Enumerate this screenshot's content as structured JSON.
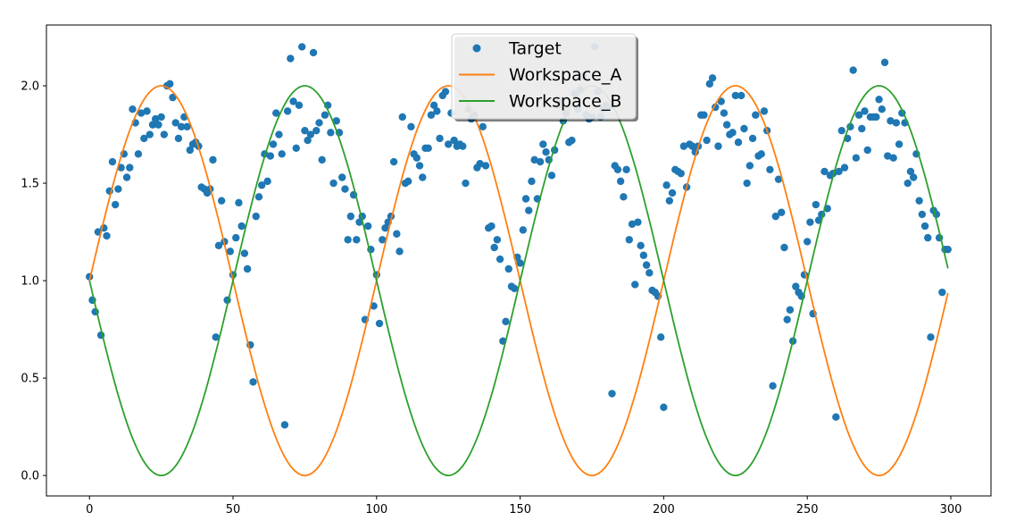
{
  "chart_data": {
    "type": "line",
    "xlim": [
      -15,
      314
    ],
    "ylim": [
      -0.105,
      2.312
    ],
    "xticks": [
      0,
      50,
      100,
      150,
      200,
      250,
      300
    ],
    "yticks": [
      {
        "value": 0,
        "label": "0.0"
      },
      0.5,
      {
        "value": 1,
        "label": "1.0"
      },
      1.5,
      {
        "value": 2,
        "label": "2.0"
      }
    ],
    "legend": "upper center",
    "series": [
      {
        "name": "Target",
        "style": "markers",
        "color": "#1f77b4",
        "x": [
          0,
          1,
          2,
          3,
          4,
          5,
          6,
          7,
          8,
          9,
          10,
          11,
          12,
          13,
          14,
          15,
          16,
          17,
          18,
          19,
          20,
          21,
          22,
          23,
          24,
          25,
          26,
          27,
          28,
          29,
          30,
          31,
          32,
          33,
          34,
          35,
          36,
          37,
          38,
          39,
          40,
          41,
          42,
          43,
          44,
          45,
          46,
          47,
          48,
          49,
          50,
          51,
          52,
          53,
          54,
          55,
          56,
          57,
          58,
          59,
          60,
          61,
          62,
          63,
          64,
          65,
          66,
          67,
          68,
          69,
          70,
          71,
          72,
          73,
          74,
          75,
          76,
          77,
          78,
          79,
          80,
          81,
          82,
          83,
          84,
          85,
          86,
          87,
          88,
          89,
          90,
          91,
          92,
          93,
          94,
          95,
          96,
          97,
          98,
          99,
          100,
          101,
          102,
          103,
          104,
          105,
          106,
          107,
          108,
          109,
          110,
          111,
          112,
          113,
          114,
          115,
          116,
          117,
          118,
          119,
          120,
          121,
          122,
          123,
          124,
          125,
          126,
          127,
          128,
          129,
          130,
          131,
          132,
          133,
          134,
          135,
          136,
          137,
          138,
          139,
          140,
          141,
          142,
          143,
          144,
          145,
          146,
          147,
          148,
          149,
          150,
          151,
          152,
          153,
          154,
          155,
          156,
          157,
          158,
          159,
          160,
          161,
          162,
          163,
          164,
          165,
          166,
          167,
          168,
          169,
          170,
          171,
          172,
          173,
          174,
          175,
          176,
          177,
          178,
          179,
          180,
          181,
          182,
          183,
          184,
          185,
          186,
          187,
          188,
          189,
          190,
          191,
          192,
          193,
          194,
          195,
          196,
          197,
          198,
          199,
          200,
          201,
          202,
          203,
          204,
          205,
          206,
          207,
          208,
          209,
          210,
          211,
          212,
          213,
          214,
          215,
          216,
          217,
          218,
          219,
          220,
          221,
          222,
          223,
          224,
          225,
          226,
          227,
          228,
          229,
          230,
          231,
          232,
          233,
          234,
          235,
          236,
          237,
          238,
          239,
          240,
          241,
          242,
          243,
          244,
          245,
          246,
          247,
          248,
          249,
          250,
          251,
          252,
          253,
          254,
          255,
          256,
          257,
          258,
          259,
          260,
          261,
          262,
          263,
          264,
          265,
          266,
          267,
          268,
          269,
          270,
          271,
          272,
          273,
          274,
          275,
          276,
          277,
          278,
          279,
          280,
          281,
          282,
          283,
          284,
          285,
          286,
          287,
          288,
          289,
          290,
          291,
          292,
          293,
          294,
          295,
          296,
          297,
          298,
          299
        ],
        "values": [
          1.02,
          0.9,
          0.84,
          1.25,
          0.72,
          1.27,
          1.23,
          1.46,
          1.61,
          1.39,
          1.47,
          1.58,
          1.65,
          1.53,
          1.58,
          1.88,
          1.81,
          1.65,
          1.86,
          1.73,
          1.87,
          1.75,
          1.8,
          1.83,
          1.8,
          1.84,
          1.75,
          2.0,
          2.01,
          1.94,
          1.81,
          1.73,
          1.79,
          1.84,
          1.79,
          1.67,
          1.7,
          1.71,
          1.69,
          1.48,
          1.47,
          1.45,
          1.47,
          1.62,
          0.71,
          1.18,
          1.41,
          1.2,
          0.9,
          1.15,
          1.03,
          1.22,
          1.4,
          1.28,
          1.14,
          1.06,
          0.67,
          0.48,
          1.33,
          1.43,
          1.49,
          1.65,
          1.51,
          1.64,
          1.7,
          1.86,
          1.75,
          1.65,
          0.26,
          1.87,
          2.14,
          1.92,
          1.68,
          1.9,
          2.2,
          1.77,
          1.72,
          1.75,
          2.17,
          1.77,
          1.81,
          1.62,
          1.85,
          1.9,
          1.76,
          1.5,
          1.82,
          1.76,
          1.53,
          1.47,
          1.21,
          1.33,
          1.44,
          1.21,
          1.3,
          1.33,
          0.8,
          1.28,
          1.16,
          0.87,
          1.03,
          0.78,
          1.21,
          1.27,
          1.3,
          1.33,
          1.61,
          1.24,
          1.15,
          1.84,
          1.5,
          1.51,
          1.79,
          1.65,
          1.63,
          1.59,
          1.53,
          1.68,
          1.68,
          1.85,
          1.9,
          1.87,
          1.73,
          1.95,
          1.97,
          1.7,
          1.86,
          1.72,
          1.69,
          1.7,
          1.69,
          1.5,
          1.88,
          1.83,
          1.85,
          1.58,
          1.6,
          1.79,
          1.59,
          1.27,
          1.28,
          1.17,
          1.21,
          1.11,
          0.69,
          0.79,
          1.06,
          0.97,
          0.96,
          1.12,
          1.09,
          1.26,
          1.42,
          1.36,
          1.51,
          1.62,
          1.42,
          1.61,
          1.7,
          1.66,
          1.62,
          1.54,
          1.67,
          1.9,
          1.92,
          1.82,
          1.86,
          1.71,
          1.72,
          1.96,
          1.88,
          1.98,
          2.05,
          1.85,
          1.83,
          1.84,
          2.2,
          1.97,
          1.84,
          1.88,
          1.9,
          1.89,
          0.42,
          1.59,
          1.57,
          1.51,
          1.43,
          1.57,
          1.21,
          1.29,
          0.98,
          1.3,
          1.18,
          1.13,
          1.08,
          1.04,
          0.95,
          0.94,
          0.92,
          0.71,
          0.35,
          1.49,
          1.41,
          1.45,
          1.57,
          1.56,
          1.55,
          1.69,
          1.48,
          1.7,
          1.69,
          1.66,
          1.69,
          1.85,
          1.85,
          1.72,
          2.01,
          2.04,
          1.89,
          1.69,
          1.92,
          1.86,
          1.8,
          1.75,
          1.76,
          1.95,
          1.71,
          1.95,
          1.78,
          1.5,
          1.59,
          1.73,
          1.85,
          1.64,
          1.65,
          1.87,
          1.77,
          1.57,
          0.46,
          1.33,
          1.52,
          1.35,
          1.17,
          0.8,
          0.85,
          0.69,
          0.97,
          0.94,
          0.92,
          1.03,
          1.2,
          1.3,
          0.83,
          1.39,
          1.31,
          1.34,
          1.56,
          1.37,
          1.54,
          1.55,
          0.3,
          1.56,
          1.77,
          1.58,
          1.73,
          1.79,
          2.08,
          1.63,
          1.85,
          1.78,
          1.87,
          1.67,
          1.84,
          1.84,
          1.84,
          1.93,
          1.88,
          2.12,
          1.64,
          1.82,
          1.63,
          1.81,
          1.7,
          1.86,
          1.81,
          1.5,
          1.56,
          1.53,
          1.65,
          1.41,
          1.34,
          1.28,
          1.22,
          0.71,
          1.36,
          1.34,
          1.22,
          0.94,
          1.16,
          1.16
        ]
      },
      {
        "name": "Workspace_A",
        "style": "line",
        "color": "#ff7f0e",
        "x": [
          0,
          5,
          10,
          15,
          20,
          25,
          30,
          35,
          40,
          45,
          50,
          55,
          60,
          65,
          70,
          75,
          80,
          85,
          90,
          95,
          100,
          105,
          110,
          115,
          120,
          125,
          130,
          135,
          140,
          145,
          150,
          155,
          160,
          165,
          170,
          175,
          180,
          185,
          190,
          195,
          200,
          205,
          210,
          215,
          220,
          225,
          230,
          235,
          240,
          245,
          250,
          255,
          260,
          265,
          270,
          275,
          280,
          285,
          290,
          295,
          299
        ],
        "values": [
          1,
          1.309,
          1.588,
          1.809,
          1.951,
          2,
          1.951,
          1.809,
          1.588,
          1.309,
          1,
          0.691,
          0.412,
          0.191,
          0.049,
          0,
          0.049,
          0.191,
          0.412,
          0.691,
          1,
          1.309,
          1.588,
          1.809,
          1.951,
          2,
          1.951,
          1.809,
          1.588,
          1.309,
          1,
          0.691,
          0.412,
          0.191,
          0.049,
          0,
          0.049,
          0.191,
          0.412,
          0.691,
          1,
          1.309,
          1.588,
          1.809,
          1.951,
          2,
          1.951,
          1.809,
          1.588,
          1.309,
          1,
          0.691,
          0.412,
          0.191,
          0.049,
          0,
          0.049,
          0.191,
          0.412,
          0.691,
          0.937
        ]
      },
      {
        "name": "Workspace_B",
        "style": "line",
        "color": "#2ca02c",
        "x": [
          0,
          5,
          10,
          15,
          20,
          25,
          30,
          35,
          40,
          45,
          50,
          55,
          60,
          65,
          70,
          75,
          80,
          85,
          90,
          95,
          100,
          105,
          110,
          115,
          120,
          125,
          130,
          135,
          140,
          145,
          150,
          155,
          160,
          165,
          170,
          175,
          180,
          185,
          190,
          195,
          200,
          205,
          210,
          215,
          220,
          225,
          230,
          235,
          240,
          245,
          250,
          255,
          260,
          265,
          270,
          275,
          280,
          285,
          290,
          295,
          299
        ],
        "values": [
          1,
          0.691,
          0.412,
          0.191,
          0.049,
          0,
          0.049,
          0.191,
          0.412,
          0.691,
          1,
          1.309,
          1.588,
          1.809,
          1.951,
          2,
          1.951,
          1.809,
          1.588,
          1.309,
          1,
          0.691,
          0.412,
          0.191,
          0.049,
          0,
          0.049,
          0.191,
          0.412,
          0.691,
          1,
          1.309,
          1.588,
          1.809,
          1.951,
          2,
          1.951,
          1.809,
          1.588,
          1.309,
          1,
          0.691,
          0.412,
          0.191,
          0.049,
          0,
          0.049,
          0.191,
          0.412,
          0.691,
          1,
          1.309,
          1.588,
          1.809,
          1.951,
          2,
          1.951,
          1.809,
          1.588,
          1.309,
          1.063
        ]
      }
    ]
  }
}
